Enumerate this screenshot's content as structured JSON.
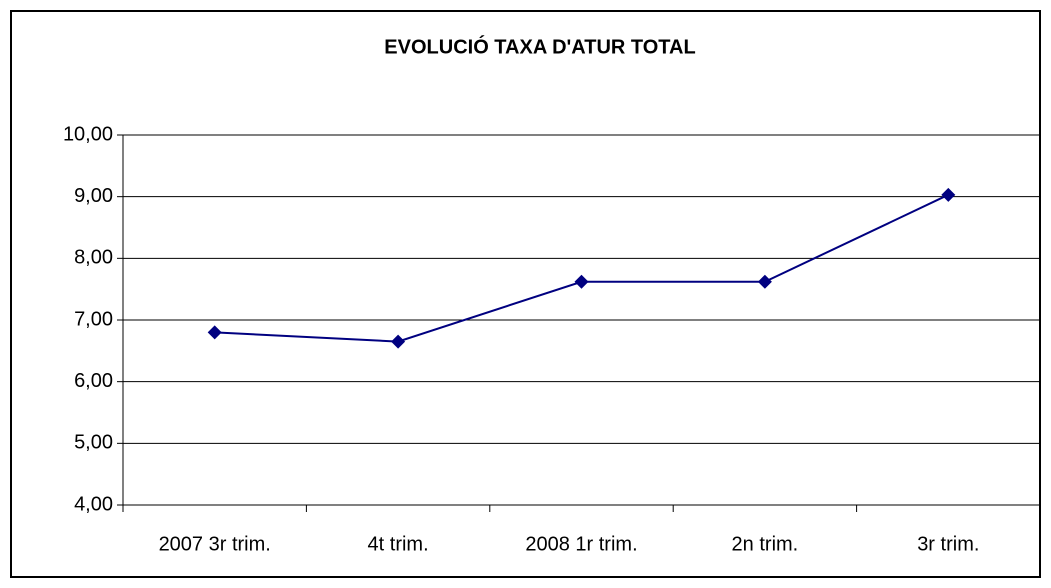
{
  "chart_data": {
    "type": "line",
    "title": "EVOLUCIÓ TAXA D'ATUR TOTAL",
    "categories": [
      "2007 3r trim.",
      "4t trim.",
      "2008 1r trim.",
      "2n trim.",
      "3r trim."
    ],
    "values": [
      6.8,
      6.65,
      7.62,
      7.62,
      9.03
    ],
    "color": "#000080",
    "ylim": [
      4,
      10
    ],
    "yticks": [
      {
        "value": 4,
        "label": "4,00"
      },
      {
        "value": 5,
        "label": "5,00"
      },
      {
        "value": 6,
        "label": "6,00"
      },
      {
        "value": 7,
        "label": "7,00"
      },
      {
        "value": 8,
        "label": "8,00"
      },
      {
        "value": 9,
        "label": "9,00"
      },
      {
        "value": 10,
        "label": "10,00"
      }
    ],
    "grid": true
  }
}
